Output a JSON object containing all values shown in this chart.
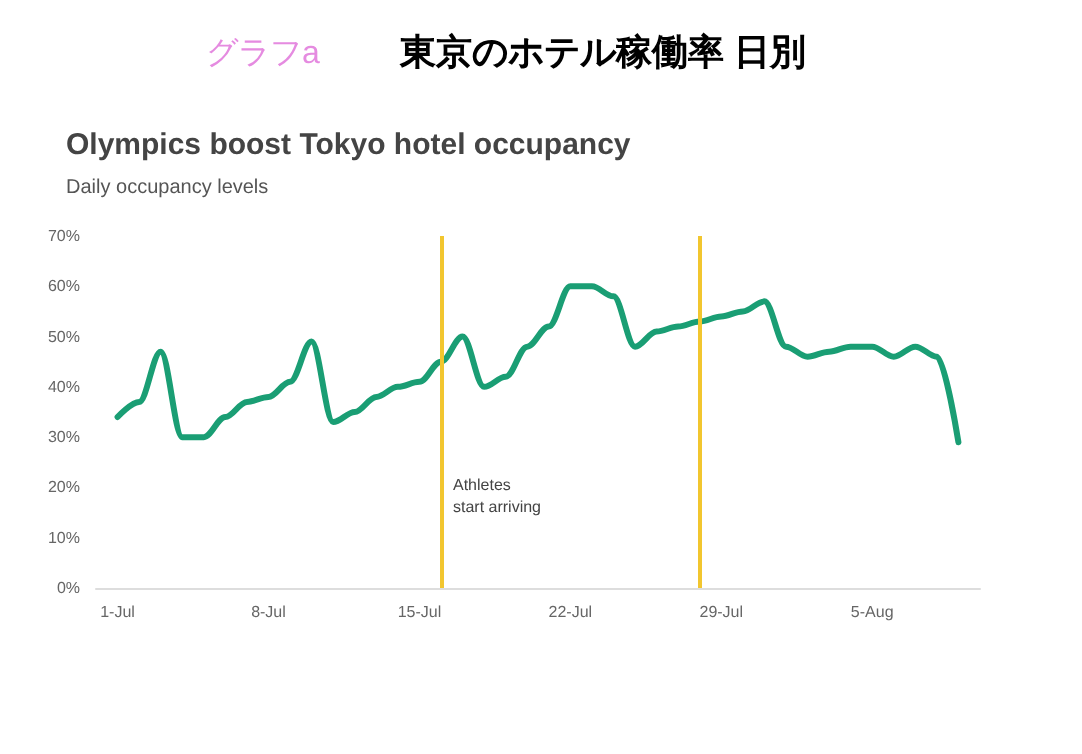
{
  "chart_data": {
    "type": "line",
    "title": "Olympics boost Tokyo hotel occupancy",
    "subtitle": "Daily occupancy levels",
    "annotations": [
      "グラフa",
      "東京のホテル稼働率 日別"
    ],
    "x": [
      "--07-01",
      "--07-02",
      "--07-03",
      "--07-04",
      "--07-05",
      "--07-06",
      "--07-07",
      "--07-08",
      "--07-09",
      "--07-10",
      "--07-11",
      "--07-12",
      "--07-13",
      "--07-14",
      "--07-15",
      "--07-16",
      "--07-17",
      "--07-18",
      "--07-19",
      "--07-20",
      "--07-21",
      "--07-22",
      "--07-23",
      "--07-24",
      "--07-25",
      "--07-26",
      "--07-27",
      "--07-28",
      "--07-29",
      "--07-30",
      "--07-31",
      "--08-01",
      "--08-02",
      "--08-03",
      "--08-04",
      "--08-05",
      "--08-06",
      "--08-07",
      "--08-08",
      "--08-09"
    ],
    "series": [
      {
        "color": "#1a9e74",
        "values": [
          34,
          37,
          47,
          30,
          30,
          34,
          37,
          38,
          41,
          49,
          33,
          35,
          38,
          40,
          41,
          45,
          50,
          40,
          42,
          48,
          52,
          60,
          60,
          58,
          48,
          51,
          52,
          53,
          54,
          55,
          57,
          48,
          46,
          47,
          48,
          48,
          46,
          48,
          46,
          29
        ]
      }
    ],
    "xlim": [
      "--06-30",
      "--08-10"
    ],
    "xticks": [
      {
        "value": "--07-01",
        "label": "1-Jul"
      },
      {
        "value": "--07-08",
        "label": "8-Jul"
      },
      {
        "value": "--07-15",
        "label": "15-Jul"
      },
      {
        "value": "--07-22",
        "label": "22-Jul"
      },
      {
        "value": "--07-29",
        "label": "29-Jul"
      },
      {
        "value": "--08-05",
        "label": "5-Aug"
      }
    ],
    "ylim": [
      0,
      70
    ],
    "yticks": [
      {
        "value": 0,
        "label": "0%"
      },
      {
        "value": 10,
        "label": "10%"
      },
      {
        "value": 20,
        "label": "20%"
      },
      {
        "value": 30,
        "label": "30%"
      },
      {
        "value": 40,
        "label": "40%"
      },
      {
        "value": 50,
        "label": "50%"
      },
      {
        "value": 60,
        "label": "60%"
      },
      {
        "value": 70,
        "label": "70%"
      }
    ],
    "ref_lines": [
      {
        "axis": "x",
        "value": "--07-16",
        "label": "Athletes start arriving",
        "color": "#f2c62f"
      },
      {
        "axis": "x",
        "value": "--07-28",
        "color": "#f2c62f"
      }
    ],
    "line_style": "solid"
  }
}
